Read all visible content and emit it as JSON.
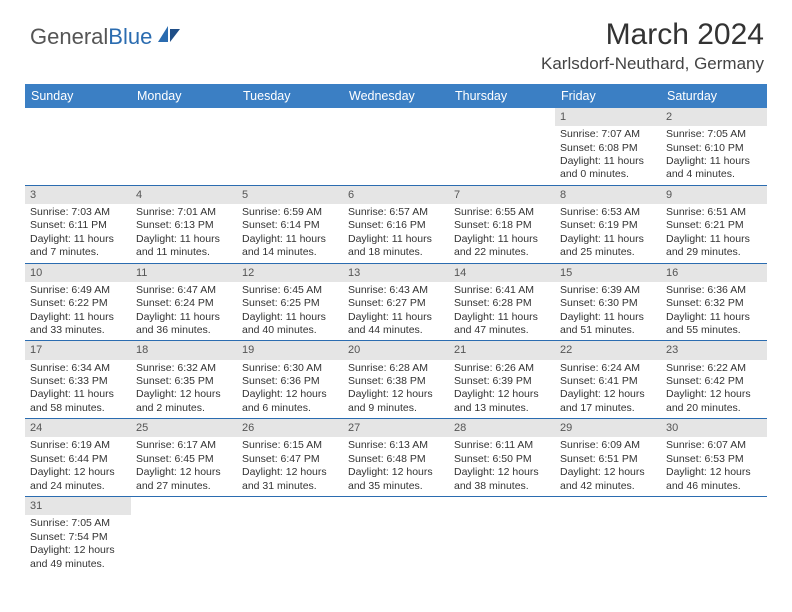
{
  "logo": {
    "text1": "General",
    "text2": "Blue"
  },
  "title": "March 2024",
  "location": "Karlsdorf-Neuthard, Germany",
  "colors": {
    "header_bg": "#3b7fc4",
    "row_border": "#2b6cb0",
    "daynum_bg": "#e5e5e5"
  },
  "weekdays": [
    "Sunday",
    "Monday",
    "Tuesday",
    "Wednesday",
    "Thursday",
    "Friday",
    "Saturday"
  ],
  "weeks": [
    [
      {
        "empty": true
      },
      {
        "empty": true
      },
      {
        "empty": true
      },
      {
        "empty": true
      },
      {
        "empty": true
      },
      {
        "day": "1",
        "sunrise": "Sunrise: 7:07 AM",
        "sunset": "Sunset: 6:08 PM",
        "dl1": "Daylight: 11 hours",
        "dl2": "and 0 minutes."
      },
      {
        "day": "2",
        "sunrise": "Sunrise: 7:05 AM",
        "sunset": "Sunset: 6:10 PM",
        "dl1": "Daylight: 11 hours",
        "dl2": "and 4 minutes."
      }
    ],
    [
      {
        "day": "3",
        "sunrise": "Sunrise: 7:03 AM",
        "sunset": "Sunset: 6:11 PM",
        "dl1": "Daylight: 11 hours",
        "dl2": "and 7 minutes."
      },
      {
        "day": "4",
        "sunrise": "Sunrise: 7:01 AM",
        "sunset": "Sunset: 6:13 PM",
        "dl1": "Daylight: 11 hours",
        "dl2": "and 11 minutes."
      },
      {
        "day": "5",
        "sunrise": "Sunrise: 6:59 AM",
        "sunset": "Sunset: 6:14 PM",
        "dl1": "Daylight: 11 hours",
        "dl2": "and 14 minutes."
      },
      {
        "day": "6",
        "sunrise": "Sunrise: 6:57 AM",
        "sunset": "Sunset: 6:16 PM",
        "dl1": "Daylight: 11 hours",
        "dl2": "and 18 minutes."
      },
      {
        "day": "7",
        "sunrise": "Sunrise: 6:55 AM",
        "sunset": "Sunset: 6:18 PM",
        "dl1": "Daylight: 11 hours",
        "dl2": "and 22 minutes."
      },
      {
        "day": "8",
        "sunrise": "Sunrise: 6:53 AM",
        "sunset": "Sunset: 6:19 PM",
        "dl1": "Daylight: 11 hours",
        "dl2": "and 25 minutes."
      },
      {
        "day": "9",
        "sunrise": "Sunrise: 6:51 AM",
        "sunset": "Sunset: 6:21 PM",
        "dl1": "Daylight: 11 hours",
        "dl2": "and 29 minutes."
      }
    ],
    [
      {
        "day": "10",
        "sunrise": "Sunrise: 6:49 AM",
        "sunset": "Sunset: 6:22 PM",
        "dl1": "Daylight: 11 hours",
        "dl2": "and 33 minutes."
      },
      {
        "day": "11",
        "sunrise": "Sunrise: 6:47 AM",
        "sunset": "Sunset: 6:24 PM",
        "dl1": "Daylight: 11 hours",
        "dl2": "and 36 minutes."
      },
      {
        "day": "12",
        "sunrise": "Sunrise: 6:45 AM",
        "sunset": "Sunset: 6:25 PM",
        "dl1": "Daylight: 11 hours",
        "dl2": "and 40 minutes."
      },
      {
        "day": "13",
        "sunrise": "Sunrise: 6:43 AM",
        "sunset": "Sunset: 6:27 PM",
        "dl1": "Daylight: 11 hours",
        "dl2": "and 44 minutes."
      },
      {
        "day": "14",
        "sunrise": "Sunrise: 6:41 AM",
        "sunset": "Sunset: 6:28 PM",
        "dl1": "Daylight: 11 hours",
        "dl2": "and 47 minutes."
      },
      {
        "day": "15",
        "sunrise": "Sunrise: 6:39 AM",
        "sunset": "Sunset: 6:30 PM",
        "dl1": "Daylight: 11 hours",
        "dl2": "and 51 minutes."
      },
      {
        "day": "16",
        "sunrise": "Sunrise: 6:36 AM",
        "sunset": "Sunset: 6:32 PM",
        "dl1": "Daylight: 11 hours",
        "dl2": "and 55 minutes."
      }
    ],
    [
      {
        "day": "17",
        "sunrise": "Sunrise: 6:34 AM",
        "sunset": "Sunset: 6:33 PM",
        "dl1": "Daylight: 11 hours",
        "dl2": "and 58 minutes."
      },
      {
        "day": "18",
        "sunrise": "Sunrise: 6:32 AM",
        "sunset": "Sunset: 6:35 PM",
        "dl1": "Daylight: 12 hours",
        "dl2": "and 2 minutes."
      },
      {
        "day": "19",
        "sunrise": "Sunrise: 6:30 AM",
        "sunset": "Sunset: 6:36 PM",
        "dl1": "Daylight: 12 hours",
        "dl2": "and 6 minutes."
      },
      {
        "day": "20",
        "sunrise": "Sunrise: 6:28 AM",
        "sunset": "Sunset: 6:38 PM",
        "dl1": "Daylight: 12 hours",
        "dl2": "and 9 minutes."
      },
      {
        "day": "21",
        "sunrise": "Sunrise: 6:26 AM",
        "sunset": "Sunset: 6:39 PM",
        "dl1": "Daylight: 12 hours",
        "dl2": "and 13 minutes."
      },
      {
        "day": "22",
        "sunrise": "Sunrise: 6:24 AM",
        "sunset": "Sunset: 6:41 PM",
        "dl1": "Daylight: 12 hours",
        "dl2": "and 17 minutes."
      },
      {
        "day": "23",
        "sunrise": "Sunrise: 6:22 AM",
        "sunset": "Sunset: 6:42 PM",
        "dl1": "Daylight: 12 hours",
        "dl2": "and 20 minutes."
      }
    ],
    [
      {
        "day": "24",
        "sunrise": "Sunrise: 6:19 AM",
        "sunset": "Sunset: 6:44 PM",
        "dl1": "Daylight: 12 hours",
        "dl2": "and 24 minutes."
      },
      {
        "day": "25",
        "sunrise": "Sunrise: 6:17 AM",
        "sunset": "Sunset: 6:45 PM",
        "dl1": "Daylight: 12 hours",
        "dl2": "and 27 minutes."
      },
      {
        "day": "26",
        "sunrise": "Sunrise: 6:15 AM",
        "sunset": "Sunset: 6:47 PM",
        "dl1": "Daylight: 12 hours",
        "dl2": "and 31 minutes."
      },
      {
        "day": "27",
        "sunrise": "Sunrise: 6:13 AM",
        "sunset": "Sunset: 6:48 PM",
        "dl1": "Daylight: 12 hours",
        "dl2": "and 35 minutes."
      },
      {
        "day": "28",
        "sunrise": "Sunrise: 6:11 AM",
        "sunset": "Sunset: 6:50 PM",
        "dl1": "Daylight: 12 hours",
        "dl2": "and 38 minutes."
      },
      {
        "day": "29",
        "sunrise": "Sunrise: 6:09 AM",
        "sunset": "Sunset: 6:51 PM",
        "dl1": "Daylight: 12 hours",
        "dl2": "and 42 minutes."
      },
      {
        "day": "30",
        "sunrise": "Sunrise: 6:07 AM",
        "sunset": "Sunset: 6:53 PM",
        "dl1": "Daylight: 12 hours",
        "dl2": "and 46 minutes."
      }
    ],
    [
      {
        "day": "31",
        "sunrise": "Sunrise: 7:05 AM",
        "sunset": "Sunset: 7:54 PM",
        "dl1": "Daylight: 12 hours",
        "dl2": "and 49 minutes."
      },
      {
        "empty": true
      },
      {
        "empty": true
      },
      {
        "empty": true
      },
      {
        "empty": true
      },
      {
        "empty": true
      },
      {
        "empty": true
      }
    ]
  ]
}
